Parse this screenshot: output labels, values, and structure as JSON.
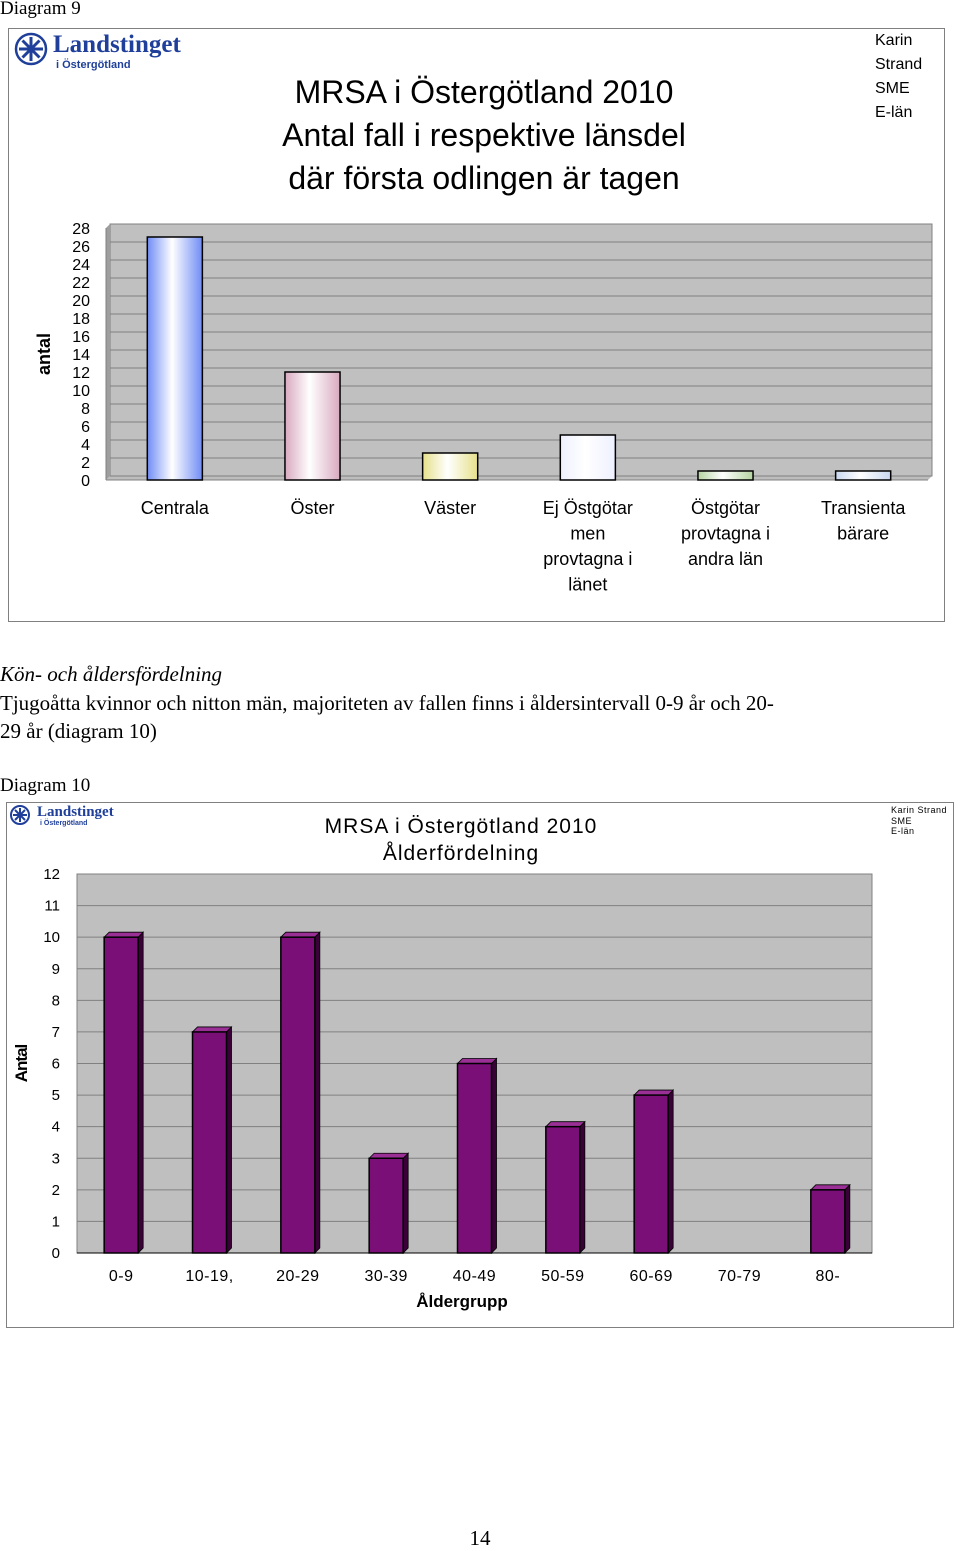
{
  "diagram9": {
    "caption": "Diagram 9",
    "logo": {
      "name": "Landstinget",
      "sub": "i Östergötland"
    },
    "title_lines": [
      "MRSA i Östergötland 2010",
      "Antal fall i respektive länsdel",
      "där första odlingen är tagen"
    ],
    "author_lines": [
      "Karin",
      "Strand",
      "SME",
      "E-län"
    ]
  },
  "section": {
    "heading": "Kön- och åldersfördelning",
    "paragraph_line1": "Tjugoåtta kvinnor och nitton män, majoriteten av fallen finns i åldersintervall 0-9 år och 20-",
    "paragraph_line2": "29 år (diagram 10)"
  },
  "diagram10": {
    "caption": "Diagram 10",
    "logo": {
      "name": "Landstinget",
      "sub": "i Östergötland"
    },
    "title_lines": [
      "MRSA i Östergötland 2010",
      "Ålderfördelning"
    ],
    "author_lines": [
      "Karin Strand",
      "SME",
      "E-län"
    ]
  },
  "page_number": "14",
  "chart_data": [
    {
      "type": "bar",
      "title": "MRSA i Östergötland 2010 Antal fall i respektive länsdel där första odlingen är tagen",
      "xlabel": "",
      "ylabel": "antal",
      "ylim": [
        0,
        28
      ],
      "yticks": [
        "0",
        "2",
        "4",
        "6",
        "8",
        "10",
        "12",
        "14",
        "16",
        "18",
        "20",
        "22",
        "24",
        "26",
        "28"
      ],
      "categories": [
        [
          "Centrala"
        ],
        [
          "Öster"
        ],
        [
          "Väster"
        ],
        [
          "Ej Östgötar",
          "men",
          "provtagna i",
          "länet"
        ],
        [
          "Östgötar",
          "provtagna i",
          "andra län"
        ],
        [
          "Transienta",
          "bärare"
        ]
      ],
      "values": [
        27,
        12,
        3,
        5,
        1,
        1
      ],
      "colors": [
        "#6f8cf5",
        "#d8a9bf",
        "#e6e08a",
        "#eef0ff",
        "#b4d4a0",
        "#c8d8f0"
      ],
      "grid": true,
      "legend": "none"
    },
    {
      "type": "bar",
      "title": "MRSA i Östergötland 2010 Ålderfördelning",
      "xlabel": "Åldergrupp",
      "ylabel": "Antal",
      "ylim": [
        0,
        12
      ],
      "yticks": [
        "0",
        "1",
        "2",
        "3",
        "4",
        "5",
        "6",
        "7",
        "8",
        "9",
        "10",
        "11",
        "12"
      ],
      "categories": [
        "0-9",
        "10-19,",
        "20-29",
        "30-39",
        "40-49",
        "50-59",
        "60-69",
        "70-79",
        "80-"
      ],
      "values": [
        10,
        7,
        10,
        3,
        6,
        4,
        5,
        0,
        2
      ],
      "color": "#7a0f78",
      "grid": true,
      "legend": "none"
    }
  ]
}
